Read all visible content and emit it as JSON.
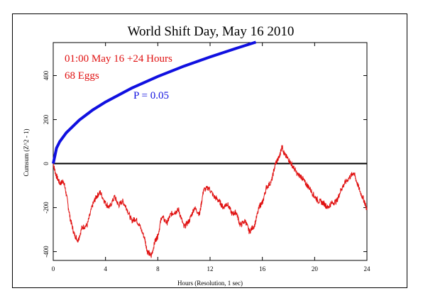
{
  "chart_data": {
    "type": "line",
    "title": "World Shift Day, May 16 2010",
    "xlabel": "Hours (Resolution, 1 sec)",
    "ylabel": "Cumsum (Z^2 - 1)",
    "xlim": [
      0,
      24
    ],
    "ylim": [
      -440,
      550
    ],
    "x_ticks": [
      "0",
      "4",
      "8",
      "12",
      "16",
      "20",
      "24"
    ],
    "x_tick_values": [
      0,
      4,
      8,
      12,
      16,
      20,
      24
    ],
    "y_ticks": [
      "-400",
      "-200",
      "0",
      "200",
      "400"
    ],
    "y_tick_values": [
      -400,
      -200,
      0,
      200,
      400
    ],
    "annotations": [
      {
        "text": "01:00 May 16 +24 Hours",
        "color": "#e01010"
      },
      {
        "text": "68 Eggs",
        "color": "#e01010"
      },
      {
        "text": "P = 0.05",
        "color": "#1010e0"
      }
    ],
    "reference_line": {
      "y": 0,
      "color": "#000000"
    },
    "significance_curve": {
      "label": "P = 0.05",
      "color": "#1010e0",
      "x": [
        0,
        0.25,
        0.5,
        1,
        2,
        3,
        4,
        6,
        8,
        10,
        12,
        14,
        15.5
      ],
      "y": [
        0,
        70,
        100,
        140,
        198,
        243,
        280,
        343,
        396,
        443,
        485,
        524,
        552
      ]
    },
    "series": [
      {
        "color": "#e01010",
        "x": [
          0,
          0.2,
          0.5,
          0.8,
          1.0,
          1.3,
          1.6,
          1.9,
          2.2,
          2.6,
          3.0,
          3.3,
          3.6,
          4.0,
          4.3,
          4.7,
          5.0,
          5.3,
          5.6,
          6.0,
          6.3,
          6.6,
          7.0,
          7.2,
          7.5,
          7.8,
          8.0,
          8.3,
          8.7,
          9.0,
          9.3,
          9.6,
          10.0,
          10.4,
          10.8,
          11.2,
          11.5,
          11.9,
          12.3,
          12.7,
          13.0,
          13.3,
          13.7,
          14.0,
          14.3,
          14.7,
          15.0,
          15.4,
          15.8,
          16.0,
          16.3,
          16.7,
          17.0,
          17.3,
          17.5,
          17.7,
          18.0,
          18.3,
          18.7,
          19.0,
          19.3,
          19.6,
          20.0,
          20.3,
          20.7,
          21.0,
          21.3,
          21.7,
          22.0,
          22.3,
          22.7,
          23.0,
          23.2,
          23.5,
          23.8,
          24.0
        ],
        "y": [
          0,
          -50,
          -90,
          -80,
          -140,
          -250,
          -320,
          -350,
          -290,
          -280,
          -190,
          -150,
          -130,
          -180,
          -200,
          -150,
          -190,
          -170,
          -200,
          -260,
          -250,
          -280,
          -340,
          -400,
          -420,
          -350,
          -330,
          -240,
          -270,
          -230,
          -220,
          -210,
          -290,
          -260,
          -200,
          -230,
          -120,
          -110,
          -150,
          -170,
          -200,
          -180,
          -230,
          -220,
          -280,
          -260,
          -310,
          -280,
          -190,
          -180,
          -110,
          -80,
          0,
          30,
          80,
          40,
          20,
          -10,
          -50,
          -60,
          -90,
          -110,
          -150,
          -170,
          -180,
          -200,
          -180,
          -170,
          -120,
          -90,
          -60,
          -40,
          -80,
          -130,
          -170,
          -210
        ]
      }
    ]
  }
}
